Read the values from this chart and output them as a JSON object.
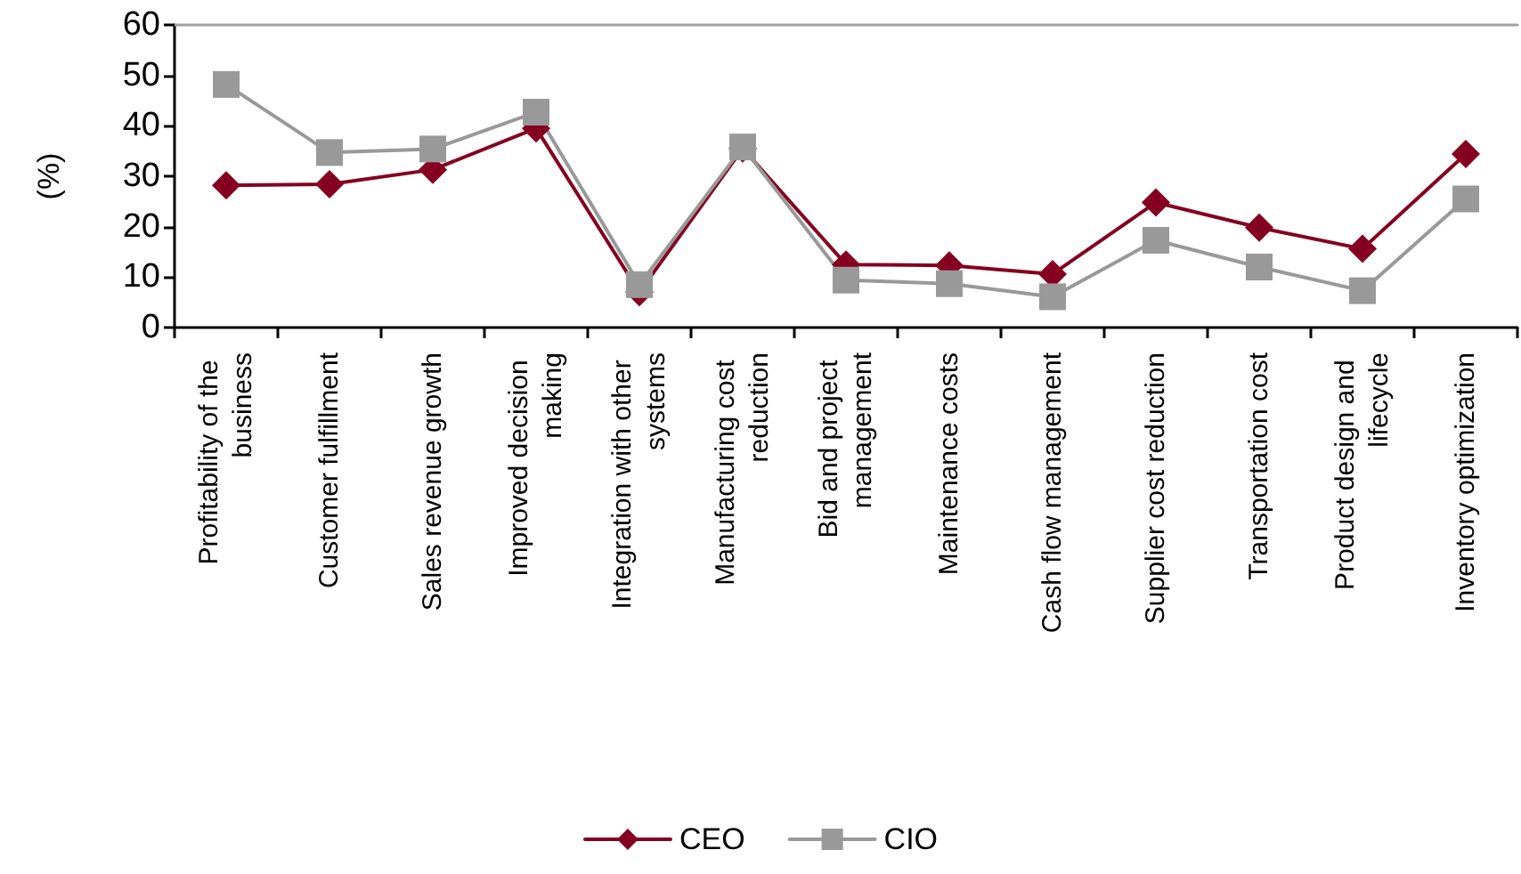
{
  "chart_data": {
    "type": "line",
    "ylabel": "(%)",
    "categories": [
      "Profitability of the business",
      "Customer fulfillment",
      "Sales revenue growth",
      "Improved decision making",
      "Integration with other systems",
      "Manufacturing cost reduction",
      "Bid and project management",
      "Maintenance costs",
      "Cash flow management",
      "Supplier cost reduction",
      "Transportation cost",
      "Product design and lifecycle",
      "Inventory optimization"
    ],
    "series": [
      {
        "name": "CEO",
        "color": "#850020",
        "marker": "diamond",
        "values": [
          28.2,
          28.4,
          31.3,
          39.5,
          7,
          35.5,
          12.5,
          12.3,
          10.6,
          24.8,
          19.8,
          15.6,
          34.4
        ]
      },
      {
        "name": "CIO",
        "color": "#999999",
        "marker": "square",
        "values": [
          48.2,
          34.7,
          35.4,
          42.7,
          8.5,
          35.8,
          9.4,
          8.7,
          6.1,
          17.3,
          12,
          7.3,
          25.5
        ]
      }
    ],
    "ylim": [
      0,
      60
    ],
    "yticks": [
      0,
      10,
      20,
      30,
      40,
      50,
      60
    ],
    "grid": false,
    "legend": "bottom",
    "line_style": "solid"
  }
}
